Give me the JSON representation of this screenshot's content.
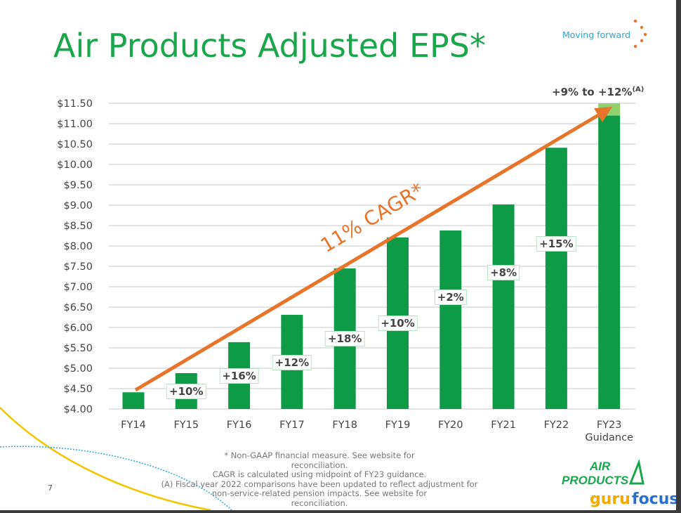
{
  "title": "Air Products Adjusted EPS*",
  "tagline": "Moving forward",
  "page_number": "7",
  "footnotes": [
    "* Non-GAAP financial measure. See website for reconciliation.",
    "CAGR is calculated using midpoint of FY23 guidance.",
    "(A) Fiscal year 2022 comparisons have been updated to reflect adjustment for",
    "non-service-related pension impacts. See website for reconciliation."
  ],
  "logo": {
    "brand": "AIR PRODUCTS",
    "watermark": "gurufocus"
  },
  "colors": {
    "title": "#1aa64a",
    "bar": "#0e9a47",
    "guidance_range": "#8fd16a",
    "arrow": "#e8742a",
    "tagline": "#2aa7d9"
  },
  "chart_data": {
    "type": "bar",
    "categories": [
      "FY14",
      "FY15",
      "FY16",
      "FY17",
      "FY18",
      "FY19",
      "FY20",
      "FY21",
      "FY22",
      "FY23"
    ],
    "category_sublabels": {
      "FY23": "Guidance"
    },
    "values": [
      4.41,
      4.88,
      5.64,
      6.31,
      7.45,
      8.21,
      8.38,
      9.02,
      10.41,
      11.2
    ],
    "guidance_range": {
      "category": "FY23",
      "low": 11.2,
      "high": 11.5,
      "label": "+9% to +12%",
      "label_note": "(A)"
    },
    "growth_labels": [
      null,
      "+10%",
      "+16%",
      "+12%",
      "+18%",
      "+10%",
      "+2%",
      "+8%",
      "+15%",
      null
    ],
    "ylim": [
      4.0,
      11.5
    ],
    "yticks": [
      4.0,
      4.5,
      5.0,
      5.5,
      6.0,
      6.5,
      7.0,
      7.5,
      8.0,
      8.5,
      9.0,
      9.5,
      10.0,
      10.5,
      11.0,
      11.5
    ],
    "ytick_labels": [
      "$4.00",
      "$4.50",
      "$5.00",
      "$5.50",
      "$6.00",
      "$6.50",
      "$7.00",
      "$7.50",
      "$8.00",
      "$8.50",
      "$9.00",
      "$9.50",
      "$10.00",
      "$10.50",
      "$11.00",
      "$11.50"
    ],
    "grid": true,
    "annotation": "11% CAGR*"
  }
}
